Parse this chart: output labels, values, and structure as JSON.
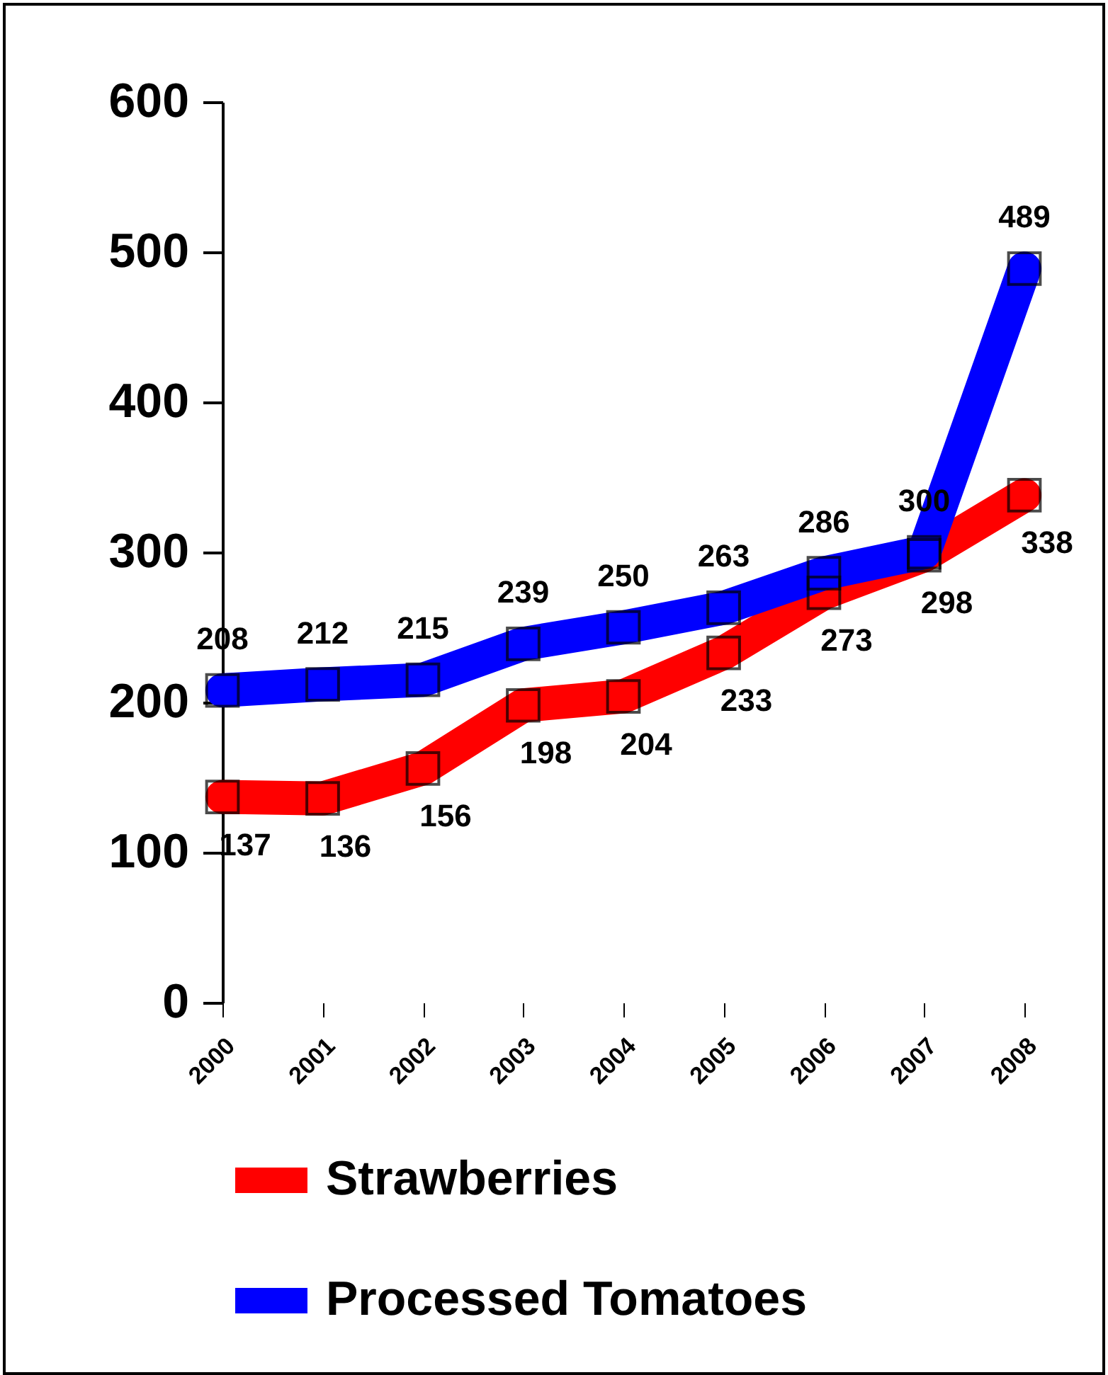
{
  "chart_data": {
    "type": "line",
    "categories": [
      "2000",
      "2001",
      "2002",
      "2003",
      "2004",
      "2005",
      "2006",
      "2007",
      "2008"
    ],
    "series": [
      {
        "name": "Strawberries",
        "color": "#ff0000",
        "values": [
          137,
          136,
          156,
          198,
          204,
          233,
          273,
          298,
          338
        ]
      },
      {
        "name": "Processed Tomatoes",
        "color": "#0000ff",
        "values": [
          208,
          212,
          215,
          239,
          250,
          263,
          286,
          300,
          489
        ]
      }
    ],
    "ylim": [
      0,
      600
    ],
    "yticks": [
      0,
      100,
      200,
      300,
      400,
      500,
      600
    ],
    "grid": false,
    "legend": "bottom",
    "marker": "square",
    "line_style": "solid",
    "data_labels": true
  }
}
